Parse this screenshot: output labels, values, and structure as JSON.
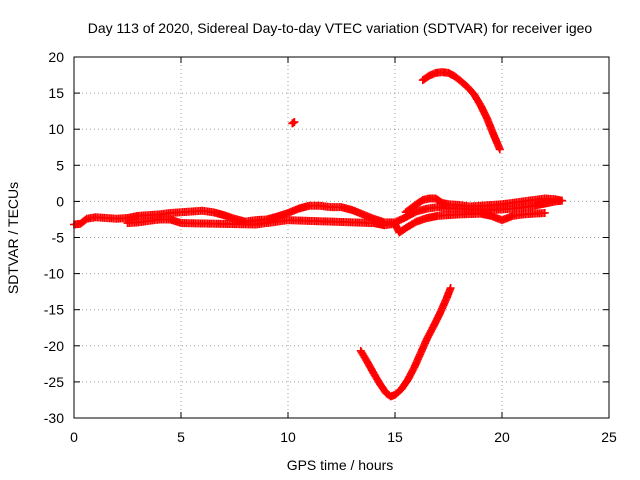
{
  "chart_data": {
    "type": "scatter",
    "title": "Day 113 of 2020, Sidereal Day-to-day VTEC variation (SDTVAR) for receiver igeo",
    "xlabel": "GPS time / hours",
    "ylabel": "SDTVAR / TECUs",
    "xlim": [
      0,
      25
    ],
    "ylim": [
      -30,
      20
    ],
    "xticks": [
      0,
      5,
      10,
      15,
      20,
      25
    ],
    "yticks": [
      -30,
      -25,
      -20,
      -15,
      -10,
      -5,
      0,
      5,
      10,
      15,
      20
    ],
    "grid": true,
    "marker_color": "#ff0000",
    "series": [
      {
        "name": "band_main",
        "points": [
          [
            0.0,
            -3.2
          ],
          [
            0.3,
            -3.1
          ],
          [
            0.6,
            -2.4
          ],
          [
            1.0,
            -2.2
          ],
          [
            1.5,
            -2.3
          ],
          [
            2.0,
            -2.4
          ],
          [
            2.5,
            -2.3
          ],
          [
            3.0,
            -2.0
          ],
          [
            3.5,
            -1.9
          ],
          [
            4.0,
            -1.8
          ],
          [
            4.5,
            -1.6
          ],
          [
            5.0,
            -1.5
          ],
          [
            5.5,
            -1.4
          ],
          [
            6.0,
            -1.3
          ],
          [
            6.5,
            -1.5
          ],
          [
            7.0,
            -1.9
          ],
          [
            7.5,
            -2.4
          ],
          [
            8.0,
            -2.8
          ],
          [
            8.5,
            -2.6
          ],
          [
            9.0,
            -2.5
          ],
          [
            9.5,
            -2.1
          ],
          [
            10.0,
            -1.6
          ],
          [
            10.5,
            -1.0
          ],
          [
            11.0,
            -0.6
          ],
          [
            11.5,
            -0.6
          ],
          [
            12.0,
            -0.8
          ],
          [
            12.5,
            -0.8
          ],
          [
            13.0,
            -1.2
          ],
          [
            13.5,
            -1.8
          ],
          [
            14.0,
            -2.4
          ],
          [
            14.5,
            -2.9
          ],
          [
            15.0,
            -2.9
          ],
          [
            15.5,
            -2.2
          ],
          [
            16.0,
            -1.4
          ],
          [
            16.5,
            -1.0
          ],
          [
            17.0,
            -0.8
          ],
          [
            17.5,
            -1.0
          ],
          [
            18.0,
            -1.0
          ],
          [
            18.5,
            -1.1
          ],
          [
            19.0,
            -1.1
          ],
          [
            19.5,
            -1.2
          ],
          [
            20.0,
            -1.1
          ],
          [
            20.5,
            -1.0
          ],
          [
            21.0,
            -0.8
          ],
          [
            21.5,
            -0.6
          ],
          [
            22.0,
            -0.3
          ],
          [
            22.5,
            0.0
          ],
          [
            22.8,
            0.1
          ]
        ]
      },
      {
        "name": "band_lower",
        "points": [
          [
            2.5,
            -3.0
          ],
          [
            3.0,
            -2.9
          ],
          [
            3.5,
            -2.7
          ],
          [
            4.0,
            -2.5
          ],
          [
            4.5,
            -2.5
          ],
          [
            5.0,
            -3.0
          ],
          [
            8.5,
            -3.2
          ],
          [
            9.0,
            -3.0
          ],
          [
            9.5,
            -2.8
          ],
          [
            10.0,
            -2.6
          ],
          [
            14.0,
            -3.0
          ],
          [
            14.5,
            -3.3
          ],
          [
            15.0,
            -3.1
          ],
          [
            15.2,
            -4.3
          ],
          [
            15.5,
            -3.7
          ],
          [
            16.0,
            -2.8
          ],
          [
            16.5,
            -2.3
          ],
          [
            17.0,
            -2.0
          ],
          [
            18.0,
            -1.8
          ],
          [
            19.0,
            -1.7
          ],
          [
            19.5,
            -2.0
          ],
          [
            20.0,
            -2.6
          ],
          [
            20.5,
            -2.0
          ],
          [
            21.0,
            -1.8
          ],
          [
            22.0,
            -1.6
          ]
        ]
      },
      {
        "name": "band_upper",
        "points": [
          [
            15.5,
            -1.5
          ],
          [
            16.0,
            -0.4
          ],
          [
            16.3,
            0.2
          ],
          [
            16.6,
            0.4
          ],
          [
            16.9,
            0.4
          ],
          [
            17.2,
            -0.2
          ],
          [
            17.5,
            -0.4
          ],
          [
            18.0,
            -0.5
          ],
          [
            18.5,
            -0.7
          ],
          [
            19.0,
            -0.6
          ],
          [
            19.5,
            -0.5
          ],
          [
            20.0,
            -0.4
          ],
          [
            20.5,
            -0.2
          ],
          [
            21.0,
            0.0
          ],
          [
            21.5,
            0.2
          ],
          [
            22.0,
            0.4
          ],
          [
            22.5,
            0.3
          ],
          [
            22.8,
            0.1
          ]
        ]
      },
      {
        "name": "arc_positive",
        "points": [
          [
            16.3,
            16.8
          ],
          [
            16.6,
            17.4
          ],
          [
            16.9,
            17.8
          ],
          [
            17.2,
            17.9
          ],
          [
            17.5,
            17.8
          ],
          [
            17.8,
            17.3
          ],
          [
            18.1,
            16.6
          ],
          [
            18.4,
            15.8
          ],
          [
            18.7,
            14.8
          ],
          [
            19.0,
            13.3
          ],
          [
            19.3,
            11.5
          ],
          [
            19.6,
            9.3
          ],
          [
            19.9,
            7.2
          ]
        ]
      },
      {
        "name": "arc_negative",
        "points": [
          [
            13.4,
            -20.7
          ],
          [
            13.7,
            -22.2
          ],
          [
            14.0,
            -23.8
          ],
          [
            14.3,
            -25.3
          ],
          [
            14.6,
            -26.6
          ],
          [
            14.8,
            -27.0
          ],
          [
            15.0,
            -26.8
          ],
          [
            15.3,
            -26.0
          ],
          [
            15.6,
            -24.7
          ],
          [
            15.9,
            -23.0
          ],
          [
            16.2,
            -21.0
          ],
          [
            16.5,
            -19.0
          ],
          [
            16.8,
            -17.3
          ],
          [
            17.1,
            -15.5
          ],
          [
            17.4,
            -13.5
          ],
          [
            17.6,
            -12.0
          ]
        ]
      },
      {
        "name": "isolated",
        "points": [
          [
            10.2,
            10.8
          ],
          [
            10.3,
            11.0
          ]
        ]
      }
    ]
  }
}
